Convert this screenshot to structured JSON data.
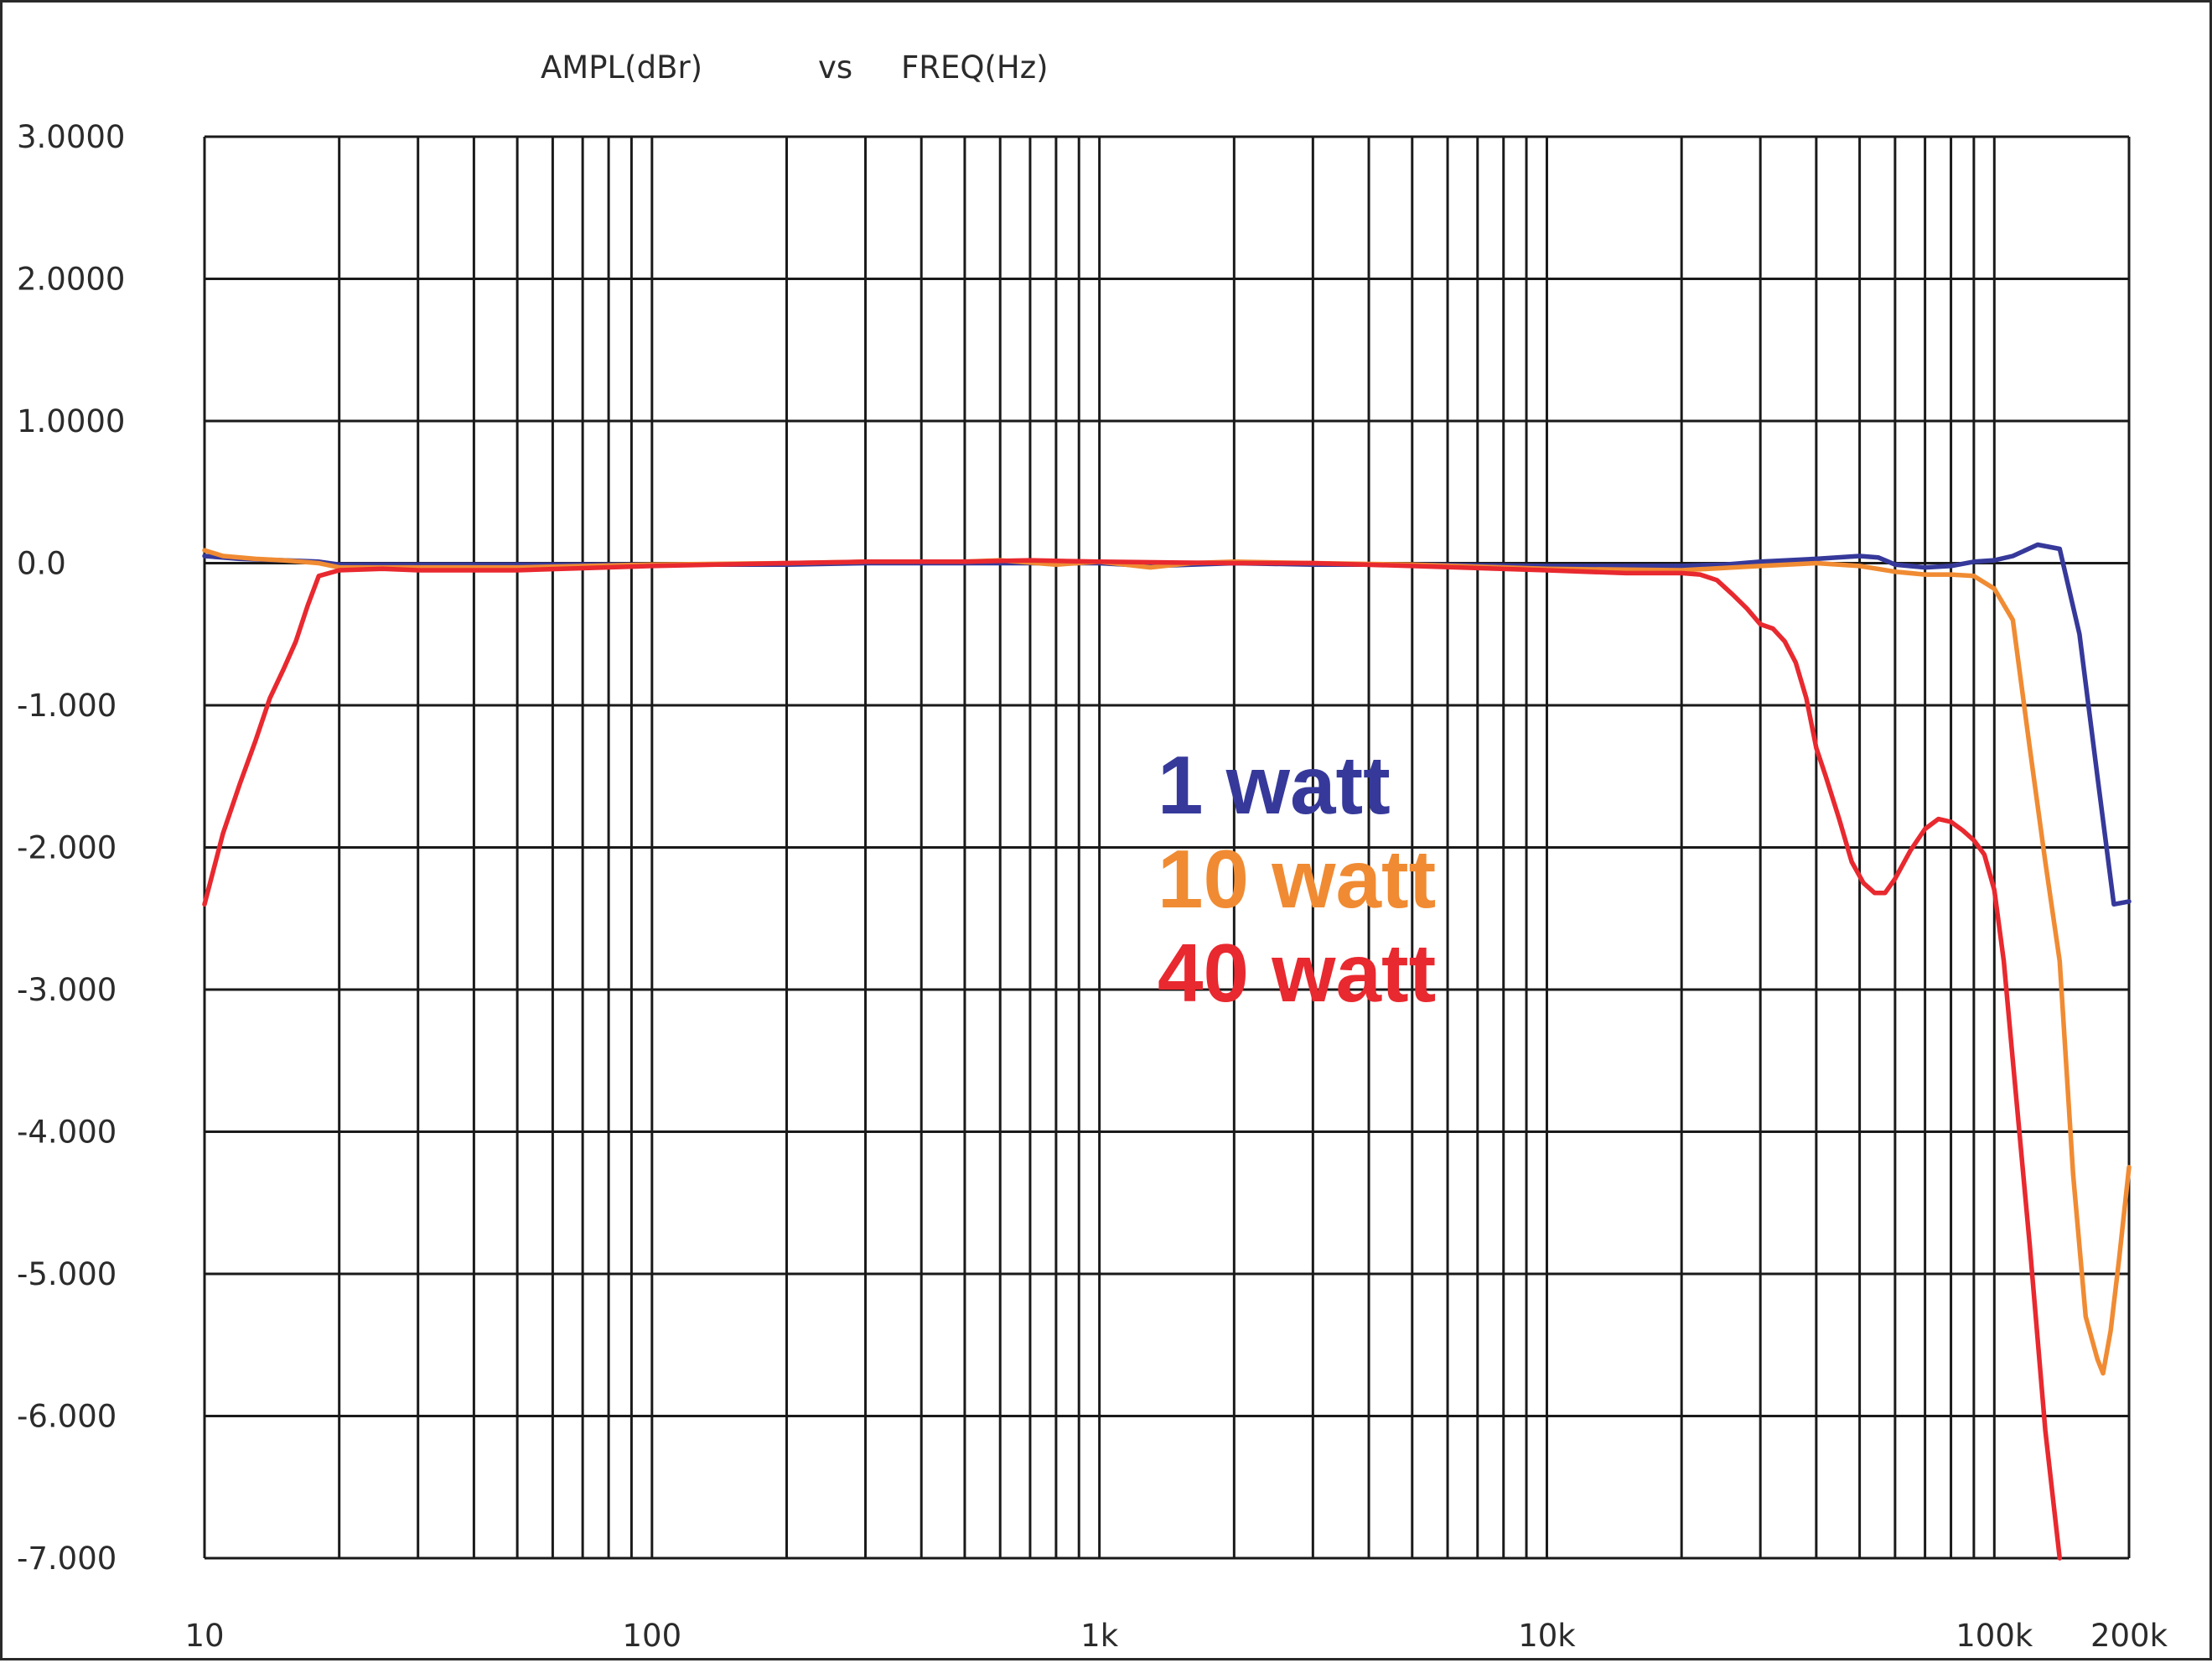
{
  "chart_data": {
    "type": "line",
    "title_parts": [
      "AMPL(dBr)",
      "vs",
      "FREQ(Hz)"
    ],
    "xlabel": "",
    "ylabel": "",
    "x_scale": "log",
    "xlim": [
      10,
      200000
    ],
    "ylim": [
      -7,
      3
    ],
    "grid": true,
    "y_ticks": [
      {
        "value": 3,
        "label": "3.0000"
      },
      {
        "value": 2,
        "label": "2.0000"
      },
      {
        "value": 1,
        "label": "1.0000"
      },
      {
        "value": 0,
        "label": "0.0"
      },
      {
        "value": -1,
        "label": "-1.000"
      },
      {
        "value": -2,
        "label": "-2.000"
      },
      {
        "value": -3,
        "label": "-3.000"
      },
      {
        "value": -4,
        "label": "-4.000"
      },
      {
        "value": -5,
        "label": "-5.000"
      },
      {
        "value": -6,
        "label": "-6.000"
      },
      {
        "value": -7,
        "label": "-7.000"
      }
    ],
    "x_ticks": [
      {
        "value": 10,
        "label": "10"
      },
      {
        "value": 100,
        "label": "100"
      },
      {
        "value": 1000,
        "label": "1k"
      },
      {
        "value": 10000,
        "label": "10k"
      },
      {
        "value": 100000,
        "label": "100k"
      },
      {
        "value": 200000,
        "label": "200k"
      }
    ],
    "legend_placement": "center",
    "series": [
      {
        "name": "1 watt",
        "color": "#36399a",
        "points": [
          [
            10,
            0.05
          ],
          [
            12,
            0.03
          ],
          [
            15,
            0.02
          ],
          [
            18,
            0.01
          ],
          [
            20,
            -0.01
          ],
          [
            30,
            -0.01
          ],
          [
            50,
            -0.01
          ],
          [
            100,
            -0.01
          ],
          [
            200,
            -0.01
          ],
          [
            300,
            0.0
          ],
          [
            500,
            0.0
          ],
          [
            800,
            0.0
          ],
          [
            1000,
            0.0
          ],
          [
            1300,
            -0.02
          ],
          [
            2000,
            0.0
          ],
          [
            3000,
            -0.01
          ],
          [
            5000,
            -0.01
          ],
          [
            10000,
            -0.02
          ],
          [
            20000,
            -0.02
          ],
          [
            25000,
            -0.01
          ],
          [
            30000,
            0.01
          ],
          [
            40000,
            0.03
          ],
          [
            50000,
            0.05
          ],
          [
            55000,
            0.04
          ],
          [
            60000,
            -0.01
          ],
          [
            70000,
            -0.03
          ],
          [
            80000,
            -0.02
          ],
          [
            90000,
            0.01
          ],
          [
            100000,
            0.02
          ],
          [
            110000,
            0.05
          ],
          [
            125000,
            0.13
          ],
          [
            140000,
            0.1
          ],
          [
            155000,
            -0.5
          ],
          [
            170000,
            -1.5
          ],
          [
            185000,
            -2.4
          ],
          [
            200000,
            -2.38
          ]
        ]
      },
      {
        "name": "10 watt",
        "color": "#f08b33",
        "points": [
          [
            10,
            0.09
          ],
          [
            11,
            0.05
          ],
          [
            13,
            0.03
          ],
          [
            15,
            0.02
          ],
          [
            18,
            0.0
          ],
          [
            20,
            -0.03
          ],
          [
            30,
            -0.03
          ],
          [
            50,
            -0.03
          ],
          [
            100,
            -0.01
          ],
          [
            200,
            0.0
          ],
          [
            300,
            0.01
          ],
          [
            500,
            0.01
          ],
          [
            600,
            0.02
          ],
          [
            800,
            -0.01
          ],
          [
            1000,
            0.01
          ],
          [
            1300,
            -0.03
          ],
          [
            1600,
            0.0
          ],
          [
            2000,
            0.01
          ],
          [
            3000,
            0.0
          ],
          [
            5000,
            -0.01
          ],
          [
            10000,
            -0.04
          ],
          [
            20000,
            -0.05
          ],
          [
            30000,
            -0.02
          ],
          [
            40000,
            0.0
          ],
          [
            50000,
            -0.02
          ],
          [
            60000,
            -0.06
          ],
          [
            70000,
            -0.08
          ],
          [
            80000,
            -0.08
          ],
          [
            90000,
            -0.09
          ],
          [
            100000,
            -0.18
          ],
          [
            110000,
            -0.4
          ],
          [
            120000,
            -1.3
          ],
          [
            130000,
            -2.1
          ],
          [
            140000,
            -2.8
          ],
          [
            150000,
            -4.3
          ],
          [
            160000,
            -5.3
          ],
          [
            170000,
            -5.6
          ],
          [
            175000,
            -5.7
          ],
          [
            182000,
            -5.4
          ],
          [
            190000,
            -4.9
          ],
          [
            200000,
            -4.25
          ]
        ]
      },
      {
        "name": "40 watt",
        "color": "#e8292f",
        "points": [
          [
            10,
            -2.4
          ],
          [
            11,
            -1.9
          ],
          [
            12,
            -1.55
          ],
          [
            13,
            -1.25
          ],
          [
            14,
            -0.95
          ],
          [
            15,
            -0.75
          ],
          [
            16,
            -0.55
          ],
          [
            17,
            -0.3
          ],
          [
            18,
            -0.09
          ],
          [
            20,
            -0.05
          ],
          [
            25,
            -0.04
          ],
          [
            30,
            -0.05
          ],
          [
            50,
            -0.05
          ],
          [
            100,
            -0.02
          ],
          [
            200,
            0.0
          ],
          [
            300,
            0.01
          ],
          [
            500,
            0.01
          ],
          [
            700,
            0.02
          ],
          [
            1000,
            0.01
          ],
          [
            2000,
            0.0
          ],
          [
            3000,
            0.0
          ],
          [
            5000,
            -0.02
          ],
          [
            10000,
            -0.05
          ],
          [
            15000,
            -0.07
          ],
          [
            20000,
            -0.07
          ],
          [
            22000,
            -0.08
          ],
          [
            24000,
            -0.12
          ],
          [
            26000,
            -0.22
          ],
          [
            28000,
            -0.32
          ],
          [
            30000,
            -0.43
          ],
          [
            32000,
            -0.46
          ],
          [
            34000,
            -0.55
          ],
          [
            36000,
            -0.7
          ],
          [
            38000,
            -0.95
          ],
          [
            40000,
            -1.3
          ],
          [
            42000,
            -1.5
          ],
          [
            45000,
            -1.8
          ],
          [
            48000,
            -2.1
          ],
          [
            51000,
            -2.25
          ],
          [
            54000,
            -2.32
          ],
          [
            57000,
            -2.32
          ],
          [
            60000,
            -2.22
          ],
          [
            65000,
            -2.02
          ],
          [
            70000,
            -1.87
          ],
          [
            75000,
            -1.8
          ],
          [
            80000,
            -1.82
          ],
          [
            85000,
            -1.88
          ],
          [
            90000,
            -1.95
          ],
          [
            95000,
            -2.05
          ],
          [
            100000,
            -2.3
          ],
          [
            105000,
            -2.8
          ],
          [
            110000,
            -3.5
          ],
          [
            120000,
            -4.8
          ],
          [
            130000,
            -6.1
          ],
          [
            140000,
            -7.0
          ]
        ]
      }
    ]
  }
}
